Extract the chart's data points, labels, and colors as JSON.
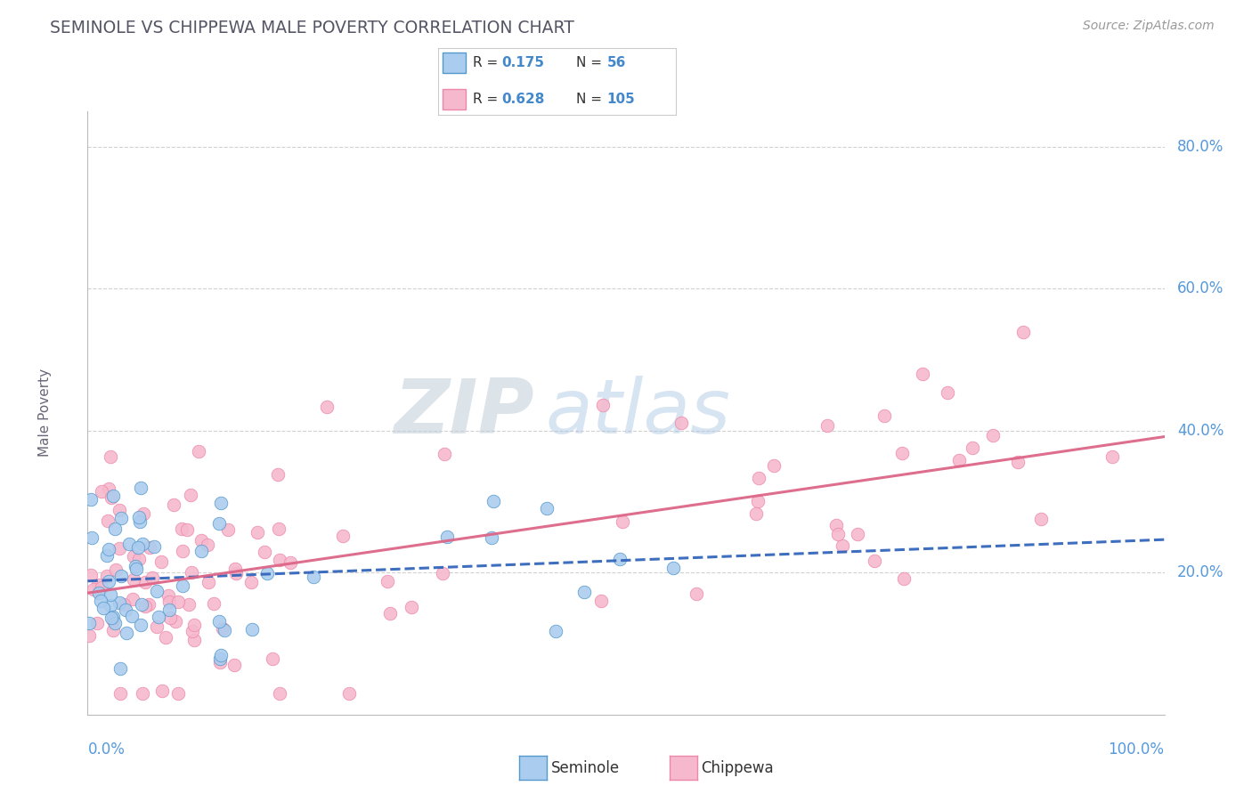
{
  "title": "SEMINOLE VS CHIPPEWA MALE POVERTY CORRELATION CHART",
  "source_text": "Source: ZipAtlas.com",
  "ylabel": "Male Poverty",
  "watermark_zip": "ZIP",
  "watermark_atlas": "atlas",
  "xlim": [
    0.0,
    1.0
  ],
  "ylim": [
    0.0,
    0.85
  ],
  "ytick_vals": [
    0.2,
    0.4,
    0.6,
    0.8
  ],
  "ytick_labels": [
    "20.0%",
    "40.0%",
    "60.0%",
    "80.0%"
  ],
  "seminole_color": "#aaccee",
  "chippewa_color": "#f5b8cc",
  "seminole_edge_color": "#5599cc",
  "chippewa_edge_color": "#ee88aa",
  "seminole_line_color": "#3366bb",
  "chippewa_line_color": "#dd6688",
  "seminole_R": 0.175,
  "seminole_N": 56,
  "chippewa_R": 0.628,
  "chippewa_N": 105,
  "background_color": "#ffffff",
  "grid_color": "#cccccc",
  "title_color": "#555566",
  "axis_label_color": "#5599dd",
  "legend_label_color": "#333333",
  "legend_val_color": "#4488cc",
  "watermark_zip_color": "#c0ccd8",
  "watermark_atlas_color": "#a8c4e0"
}
